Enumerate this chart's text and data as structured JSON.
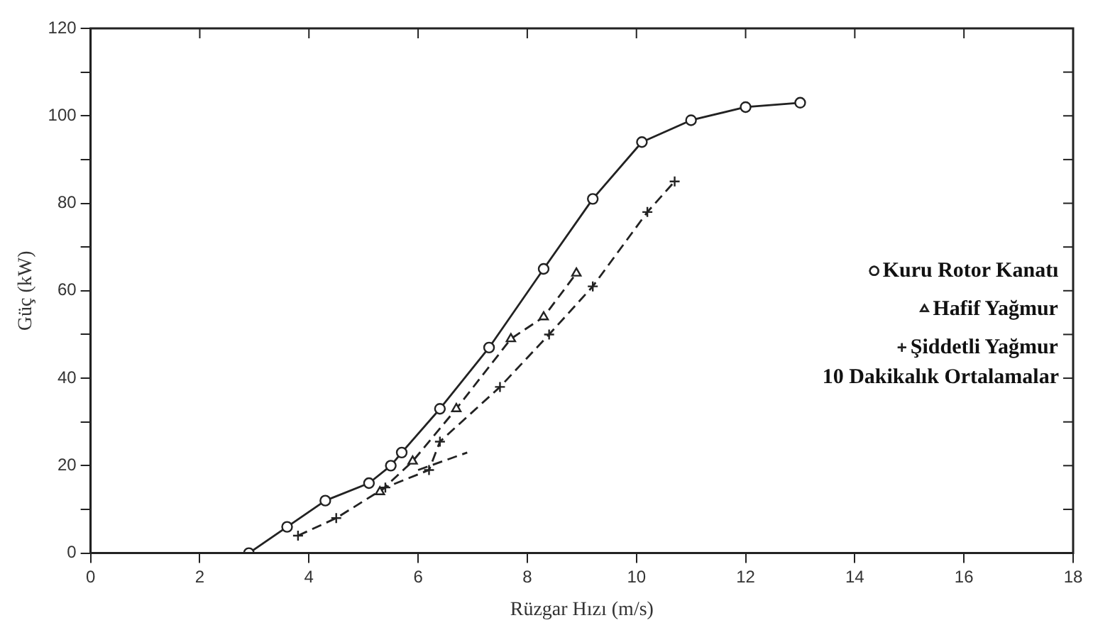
{
  "chart_data": {
    "type": "line",
    "xlabel": "Rüzgar Hızı (m/s)",
    "ylabel": "Güç (kW)",
    "legend_title": "10 Dakikalık Ortalamalar",
    "legend": "right",
    "grid": false,
    "xlim": [
      0,
      18
    ],
    "xticks": [
      0,
      2,
      4,
      6,
      8,
      10,
      12,
      14,
      16,
      18
    ],
    "ylim": [
      0,
      120
    ],
    "yticks": [
      0,
      {
        "value": 10,
        "label": null
      },
      20,
      {
        "value": 30,
        "label": null
      },
      40,
      {
        "value": 50,
        "label": null
      },
      60,
      {
        "value": 70,
        "label": null
      },
      80,
      {
        "value": 90,
        "label": null
      },
      100,
      {
        "value": 110,
        "label": null
      },
      120
    ],
    "series": [
      {
        "name": "Kuru Rotor Kanatı",
        "color": "#222222",
        "marker": "circle",
        "line_style": "solid",
        "x": [
          2.9,
          3.6,
          4.3,
          5.1,
          5.5,
          5.7,
          6.4,
          7.3,
          8.3,
          9.2,
          10.1,
          11.0,
          12.0,
          13.0
        ],
        "values": [
          0,
          6,
          12,
          16,
          20,
          23,
          33,
          47,
          65,
          81,
          94,
          99,
          102,
          103
        ]
      },
      {
        "name": "Hafif Yağmur",
        "color": "#222222",
        "marker": "triangle",
        "line_style": "dashed",
        "x": [
          5.3,
          5.9,
          6.7,
          7.7,
          8.3,
          8.9
        ],
        "values": [
          14,
          21,
          33,
          49,
          54,
          64
        ]
      },
      {
        "name": "Şiddetli Yağmur",
        "color": "#222222",
        "marker": "cross",
        "line_style": "dashed",
        "x": [
          3.8,
          4.5,
          5.4,
          6.2,
          6.4,
          7.5,
          8.4,
          9.2,
          10.2,
          10.7
        ],
        "values": [
          4,
          8,
          15,
          19,
          25.5,
          38,
          50,
          61,
          78,
          85
        ]
      },
      {
        "color": "#222222",
        "marker": "none",
        "line_style": "dashed",
        "x": [
          6.0,
          6.9
        ],
        "values": [
          19,
          23
        ]
      }
    ]
  }
}
